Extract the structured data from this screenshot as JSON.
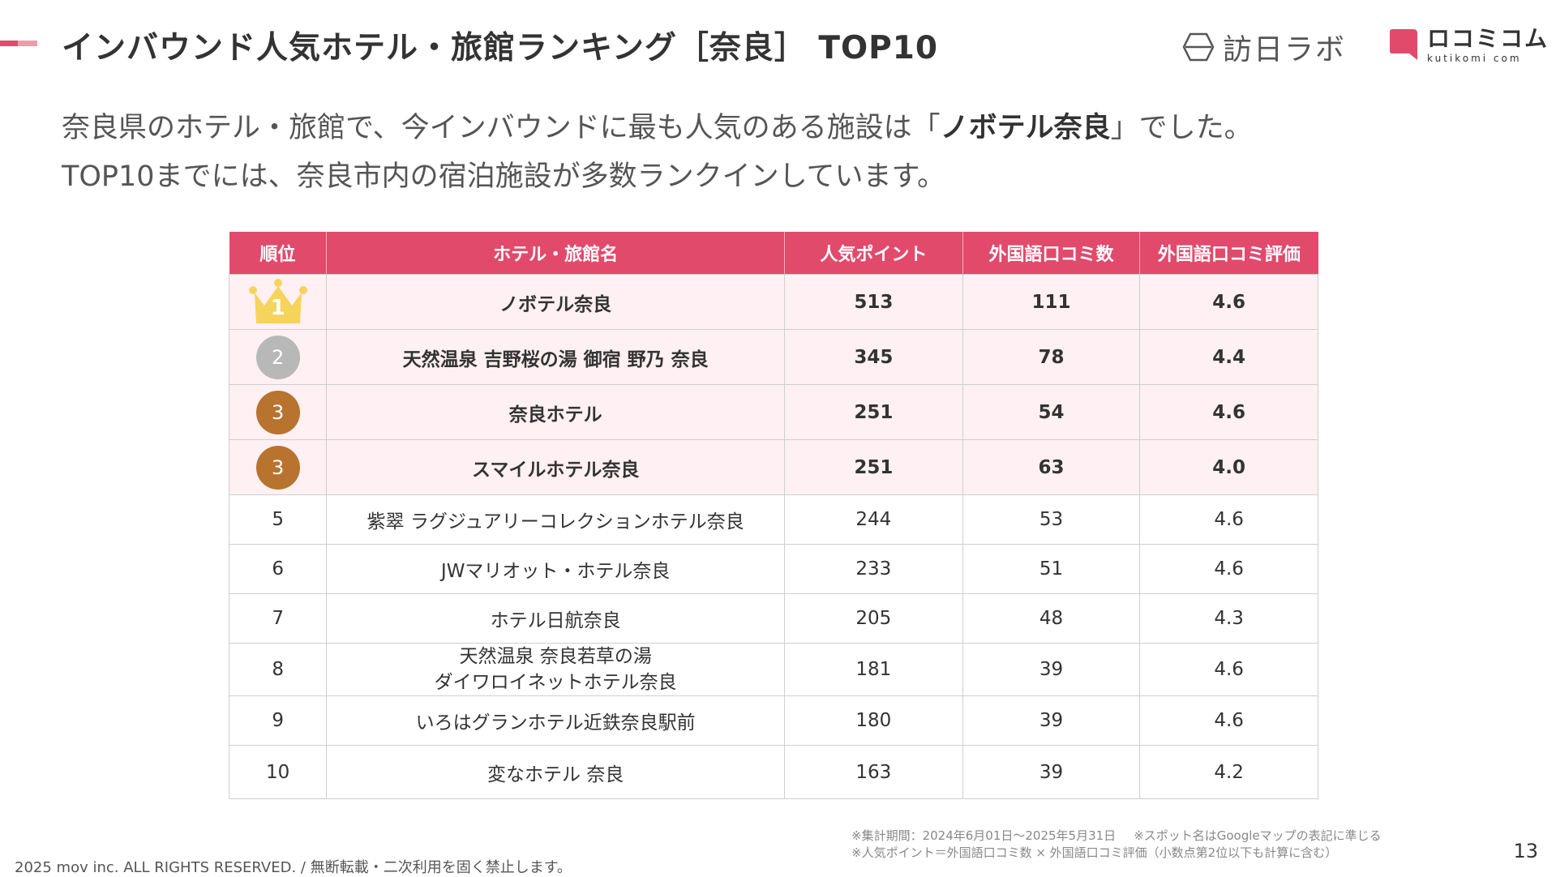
{
  "colors": {
    "accent": "#e24a6c",
    "accent_light": "#ef9aab",
    "row_highlight": "#fff0f3",
    "gold": "#f6d35b",
    "silver": "#b8b8b8",
    "bronze": "#b8732f"
  },
  "header": {
    "title": "インバウンド人気ホテル・旅館ランキング［奈良］ TOP10",
    "logos": {
      "houjin_text": "訪日ラボ",
      "kuchikomi_jp": "ロコミコム",
      "kuchikomi_en": "kutikomi com"
    }
  },
  "intro": {
    "line1_prefix": "奈良県のホテル・旅館で、今インバウンドに最も人気のある施設は「",
    "line1_highlight": "ノボテル奈良",
    "line1_suffix": "」でした。",
    "line2": "TOP10までには、奈良市内の宿泊施設が多数ランクインしています。"
  },
  "table": {
    "headers": [
      "順位",
      "ホテル・旅館名",
      "人気ポイント",
      "外国語口コミ数",
      "外国語口コミ評価"
    ],
    "rows": [
      {
        "rank": "1",
        "name": "ノボテル奈良",
        "points": "513",
        "reviews": "111",
        "rating": "4.6",
        "medal": "crown"
      },
      {
        "rank": "2",
        "name": "天然温泉 吉野桜の湯 御宿 野乃 奈良",
        "points": "345",
        "reviews": "78",
        "rating": "4.4",
        "medal": "silver"
      },
      {
        "rank": "3",
        "name": "奈良ホテル",
        "points": "251",
        "reviews": "54",
        "rating": "4.6",
        "medal": "bronze"
      },
      {
        "rank": "3",
        "name": "スマイルホテル奈良",
        "points": "251",
        "reviews": "63",
        "rating": "4.0",
        "medal": "bronze"
      },
      {
        "rank": "5",
        "name": "紫翠 ラグジュアリーコレクションホテル奈良",
        "points": "244",
        "reviews": "53",
        "rating": "4.6"
      },
      {
        "rank": "6",
        "name": "JWマリオット・ホテル奈良",
        "points": "233",
        "reviews": "51",
        "rating": "4.6"
      },
      {
        "rank": "7",
        "name": "ホテル日航奈良",
        "points": "205",
        "reviews": "48",
        "rating": "4.3"
      },
      {
        "rank": "8",
        "name_line1": "天然温泉 奈良若草の湯",
        "name_line2": "ダイワロイネットホテル奈良",
        "points": "181",
        "reviews": "39",
        "rating": "4.6"
      },
      {
        "rank": "9",
        "name": "いろはグランホテル近鉄奈良駅前",
        "points": "180",
        "reviews": "39",
        "rating": "4.6"
      },
      {
        "rank": "10",
        "name": "変なホテル 奈良",
        "points": "163",
        "reviews": "39",
        "rating": "4.2"
      }
    ]
  },
  "notes": {
    "period": "※集計期間：2024年6月01日〜2025年5月31日",
    "spot_names": "※スポット名はGoogleマップの表記に準じる",
    "points_formula": "※人気ポイント＝外国語口コミ数 × 外国語口コミ評価（小数点第2位以下も計算に含む）"
  },
  "footer": {
    "copyright": "2025 mov inc. ALL RIGHTS RESERVED. / 無断転載・二次利用を固く禁止します。",
    "page_number": "13"
  }
}
